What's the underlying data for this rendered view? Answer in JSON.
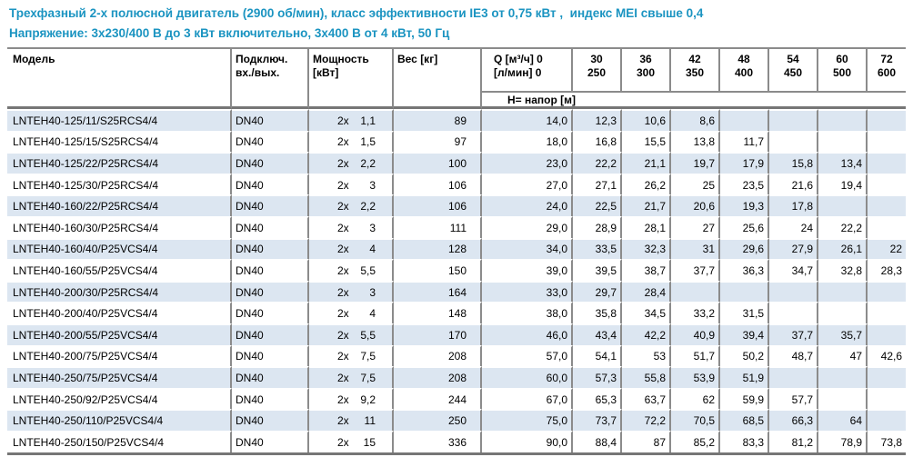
{
  "titles": {
    "line1": "Трехфазный 2-х полюсной двигатель (2900 об/мин), класс эффективности IE3 от 0,75 кВт ,  индекс MEI свыше 0,4",
    "line2": "Напряжение: 3х230/400 В до 3 кВт включительно, 3х400 В от 4 кВт, 50 Гц"
  },
  "colors": {
    "title_accent": "#1b94c1",
    "row_stripe": "#dce6f1",
    "grid_line": "#8b8b8b"
  },
  "table": {
    "columns": {
      "model": "Модель",
      "connection_l1": "Подключ.",
      "connection_l2": "вх./вых.",
      "power_l1": "Мощность",
      "power_l2": "[кВт]",
      "weight": "Вес [кг]",
      "q_l1": "Q [м³/ч] 0",
      "q_l2": "[л/мин] 0",
      "flow_cols": [
        {
          "m3h": "30",
          "lmin": "250"
        },
        {
          "m3h": "36",
          "lmin": "300"
        },
        {
          "m3h": "42",
          "lmin": "350"
        },
        {
          "m3h": "48",
          "lmin": "400"
        },
        {
          "m3h": "54",
          "lmin": "450"
        },
        {
          "m3h": "60",
          "lmin": "500"
        },
        {
          "m3h": "72",
          "lmin": "600"
        }
      ],
      "subheader": "Н= напор [м]"
    },
    "rows": [
      {
        "model": "LNTEH40-125/11/S25RCS4/4",
        "connection": "DN40",
        "power_prefix": "2x",
        "power": "1,1",
        "weight": "89",
        "head": [
          "14,0",
          "12,3",
          "10,6",
          "8,6",
          "",
          "",
          "",
          ""
        ]
      },
      {
        "model": "LNTEH40-125/15/S25RCS4/4",
        "connection": "DN40",
        "power_prefix": "2x",
        "power": "1,5",
        "weight": "97",
        "head": [
          "18,0",
          "16,8",
          "15,5",
          "13,8",
          "11,7",
          "",
          "",
          ""
        ]
      },
      {
        "model": "LNTEH40-125/22/P25RCS4/4",
        "connection": "DN40",
        "power_prefix": "2x",
        "power": "2,2",
        "weight": "100",
        "head": [
          "23,0",
          "22,2",
          "21,1",
          "19,7",
          "17,9",
          "15,8",
          "13,4",
          ""
        ]
      },
      {
        "model": "LNTEH40-125/30/P25RCS4/4",
        "connection": "DN40",
        "power_prefix": "2x",
        "power": "3",
        "weight": "106",
        "head": [
          "27,0",
          "27,1",
          "26,2",
          "25",
          "23,5",
          "21,6",
          "19,4",
          ""
        ]
      },
      {
        "model": "LNTEH40-160/22/P25RCS4/4",
        "connection": "DN40",
        "power_prefix": "2x",
        "power": "2,2",
        "weight": "106",
        "head": [
          "24,0",
          "22,5",
          "21,7",
          "20,6",
          "19,3",
          "17,8",
          "",
          ""
        ]
      },
      {
        "model": "LNTEH40-160/30/P25RCS4/4",
        "connection": "DN40",
        "power_prefix": "2x",
        "power": "3",
        "weight": "111",
        "head": [
          "29,0",
          "28,9",
          "28,1",
          "27",
          "25,6",
          "24",
          "22,2",
          ""
        ]
      },
      {
        "model": "LNTEH40-160/40/P25VCS4/4",
        "connection": "DN40",
        "power_prefix": "2x",
        "power": "4",
        "weight": "128",
        "head": [
          "34,0",
          "33,5",
          "32,3",
          "31",
          "29,6",
          "27,9",
          "26,1",
          "22"
        ]
      },
      {
        "model": "LNTEH40-160/55/P25VCS4/4",
        "connection": "DN40",
        "power_prefix": "2x",
        "power": "5,5",
        "weight": "150",
        "head": [
          "39,0",
          "39,5",
          "38,7",
          "37,7",
          "36,3",
          "34,7",
          "32,8",
          "28,3"
        ]
      },
      {
        "model": "LNTEH40-200/30/P25RCS4/4",
        "connection": "DN40",
        "power_prefix": "2x",
        "power": "3",
        "weight": "164",
        "head": [
          "33,0",
          "29,7",
          "28,4",
          "",
          "",
          "",
          "",
          ""
        ]
      },
      {
        "model": "LNTEH40-200/40/P25VCS4/4",
        "connection": "DN40",
        "power_prefix": "2x",
        "power": "4",
        "weight": "148",
        "head": [
          "38,0",
          "35,8",
          "34,5",
          "33,2",
          "31,5",
          "",
          "",
          ""
        ]
      },
      {
        "model": "LNTEH40-200/55/P25VCS4/4",
        "connection": "DN40",
        "power_prefix": "2x",
        "power": "5,5",
        "weight": "170",
        "head": [
          "46,0",
          "43,4",
          "42,2",
          "40,9",
          "39,4",
          "37,7",
          "35,7",
          ""
        ]
      },
      {
        "model": "LNTEH40-200/75/P25VCS4/4",
        "connection": "DN40",
        "power_prefix": "2x",
        "power": "7,5",
        "weight": "208",
        "head": [
          "57,0",
          "54,1",
          "53",
          "51,7",
          "50,2",
          "48,7",
          "47",
          "42,6"
        ]
      },
      {
        "model": "LNTEH40-250/75/P25VCS4/4",
        "connection": "DN40",
        "power_prefix": "2x",
        "power": "7,5",
        "weight": "208",
        "head": [
          "60,0",
          "57,3",
          "55,8",
          "53,9",
          "51,9",
          "",
          "",
          ""
        ]
      },
      {
        "model": "LNTEH40-250/92/P25VCS4/4",
        "connection": "DN40",
        "power_prefix": "2x",
        "power": "9,2",
        "weight": "244",
        "head": [
          "67,0",
          "65,3",
          "63,7",
          "62",
          "59,9",
          "57,7",
          "",
          ""
        ]
      },
      {
        "model": "LNTEH40-250/110/P25VCS4/4",
        "connection": "DN40",
        "power_prefix": "2x",
        "power": "11",
        "weight": "250",
        "head": [
          "75,0",
          "73,7",
          "72,2",
          "70,5",
          "68,5",
          "66,3",
          "64",
          ""
        ]
      },
      {
        "model": "LNTEH40-250/150/P25VCS4/4",
        "connection": "DN40",
        "power_prefix": "2x",
        "power": "15",
        "weight": "336",
        "head": [
          "90,0",
          "88,4",
          "87",
          "85,2",
          "83,3",
          "81,2",
          "78,9",
          "73,8"
        ]
      }
    ]
  }
}
